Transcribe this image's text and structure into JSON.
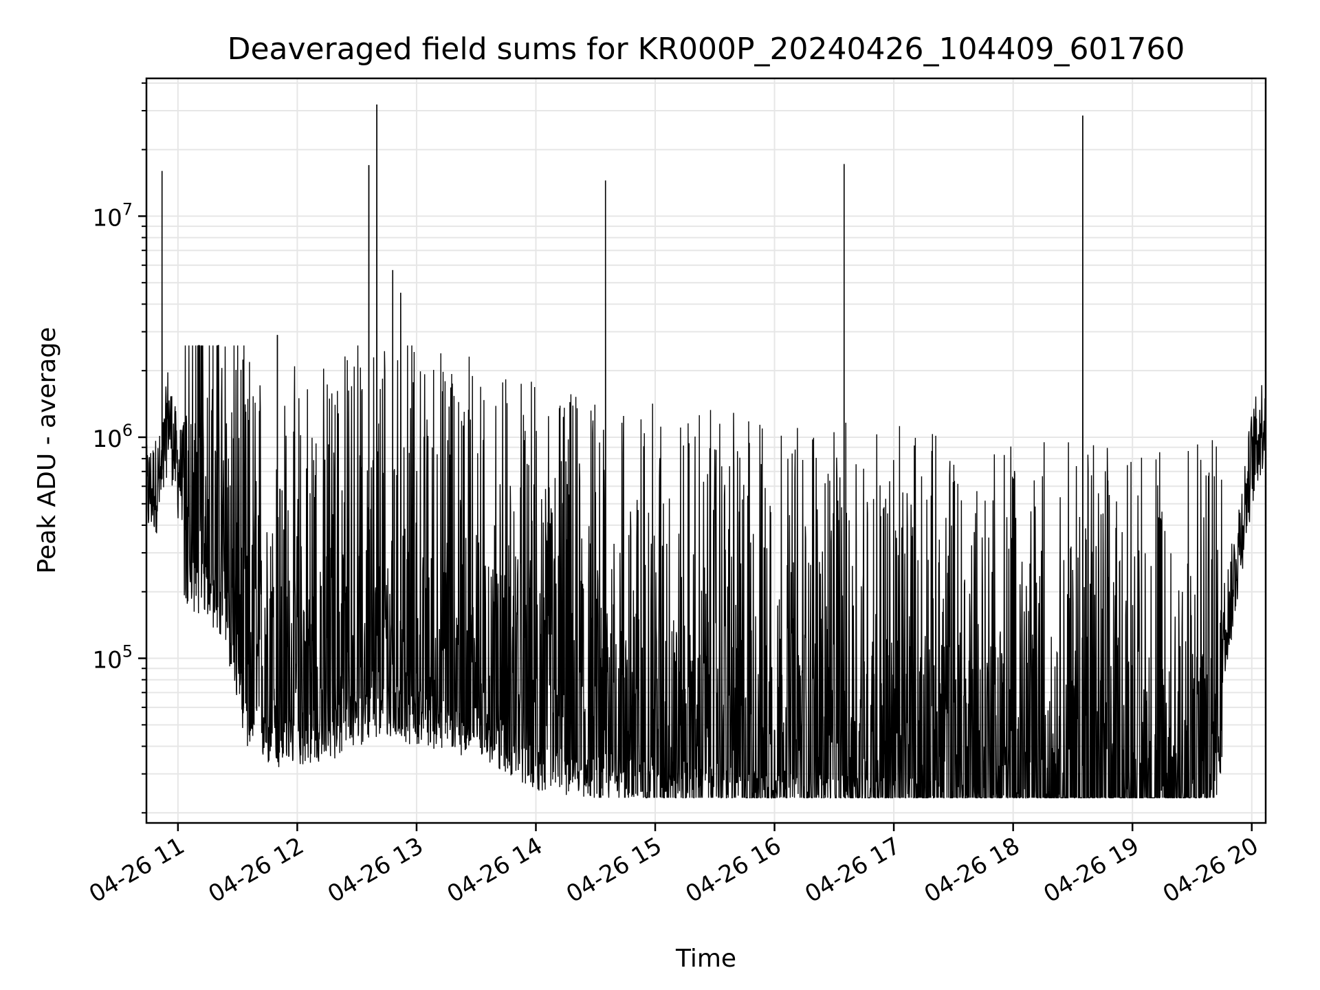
{
  "chart_data": {
    "type": "line",
    "title": "Deaveraged field sums for KR000P_20240426_104409_601760",
    "xlabel": "Time",
    "ylabel": "Peak ADU - average",
    "y_scale": "log",
    "x_tick_labels": [
      "04-26 11",
      "04-26 12",
      "04-26 13",
      "04-26 14",
      "04-26 15",
      "04-26 16",
      "04-26 17",
      "04-26 18",
      "04-26 19",
      "04-26 20"
    ],
    "x_tick_hours": [
      11,
      12,
      13,
      14,
      15,
      16,
      17,
      18,
      19,
      20
    ],
    "y_tick_labels": [
      {
        "base": "10",
        "exp": "5",
        "value": 100000
      },
      {
        "base": "10",
        "exp": "6",
        "value": 1000000
      },
      {
        "base": "10",
        "exp": "7",
        "value": 10000000
      }
    ],
    "xlim": [
      "2024-04-26T10:44:09",
      "2024-04-26T20:07:00"
    ],
    "ylim": [
      18000,
      42000000
    ],
    "grid": "major and minor, x and y",
    "line_color": "#000000",
    "series": [
      {
        "x": [
          "2024-04-26T10:44",
          "2024-04-26T10:52",
          "2024-04-26T10:55",
          "2024-04-26T11:00",
          "2024-04-26T11:15",
          "2024-04-26T11:25",
          "2024-04-26T11:35",
          "2024-04-26T11:50",
          "2024-04-26T12:00",
          "2024-04-26T12:15",
          "2024-04-26T12:30",
          "2024-04-26T12:45",
          "2024-04-26T13:00",
          "2024-04-26T13:30",
          "2024-04-26T14:00",
          "2024-04-26T14:30",
          "2024-04-26T15:00",
          "2024-04-26T15:30",
          "2024-04-26T16:00",
          "2024-04-26T16:30",
          "2024-04-26T17:00",
          "2024-04-26T17:30",
          "2024-04-26T18:00",
          "2024-04-26T18:30",
          "2024-04-26T19:00",
          "2024-04-26T19:20",
          "2024-04-26T19:30",
          "2024-04-26T19:40",
          "2024-04-26T19:50",
          "2024-04-26T20:00",
          "2024-04-26T20:07"
        ],
        "y": [
          550000,
          650000,
          1300000,
          700000,
          600000,
          400000,
          150000,
          120000,
          130000,
          130000,
          160000,
          170000,
          160000,
          140000,
          100000,
          90000,
          80000,
          75000,
          70000,
          68000,
          65000,
          62000,
          58000,
          55000,
          50000,
          48000,
          50000,
          75000,
          200000,
          800000,
          1300000
        ]
      }
    ],
    "peaks": [
      {
        "x": "2024-04-26T10:52",
        "y": 16000000
      },
      {
        "x": "2024-04-26T11:50",
        "y": 2900000
      },
      {
        "x": "2024-04-26T12:36",
        "y": 17000000
      },
      {
        "x": "2024-04-26T12:40",
        "y": 32000000
      },
      {
        "x": "2024-04-26T12:48",
        "y": 5700000
      },
      {
        "x": "2024-04-26T12:52",
        "y": 4500000
      },
      {
        "x": "2024-04-26T14:35",
        "y": 14500000
      },
      {
        "x": "2024-04-26T16:35",
        "y": 17200000
      },
      {
        "x": "2024-04-26T18:35",
        "y": 28500000
      }
    ]
  }
}
